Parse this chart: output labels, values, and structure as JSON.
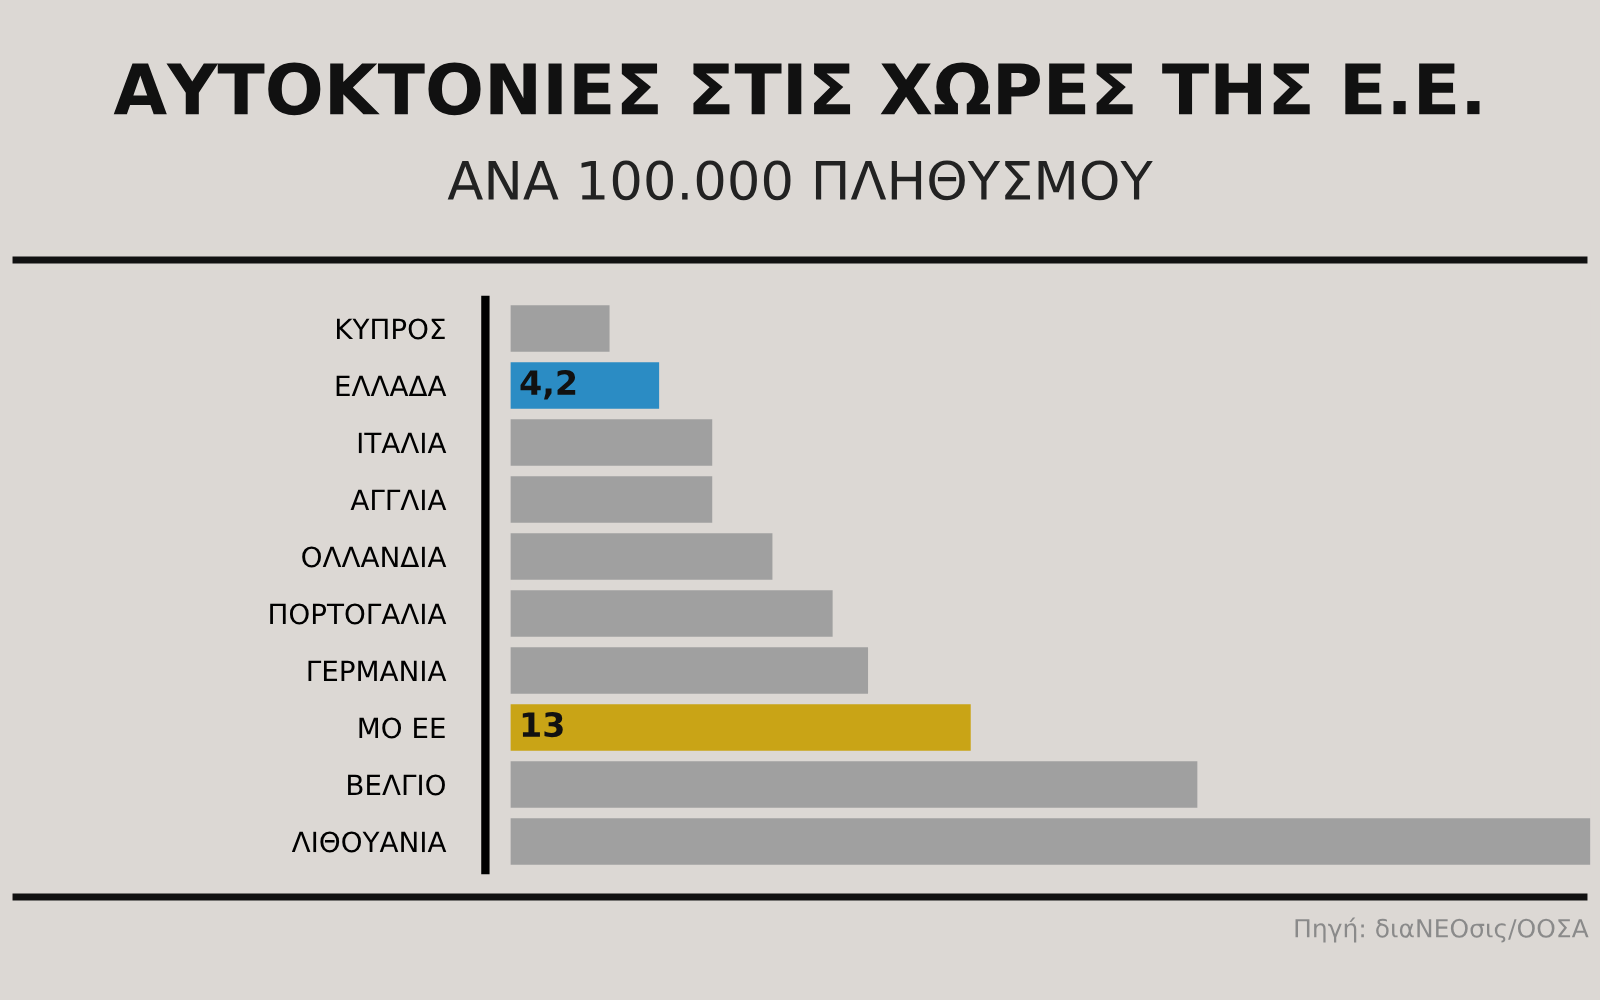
{
  "chart_data": {
    "type": "bar",
    "orientation": "horizontal",
    "title": "ΑΥΤΟΚΤΟΝΙΕΣ ΣΤΙΣ ΧΩΡΕΣ ΤΗΣ Ε.Ε.",
    "subtitle": "ΑΝΑ 100.000 ΠΛΗΘΥΣΜΟΥ",
    "categories": [
      "ΚΥΠΡΟΣ",
      "ΕΛΛΑΔΑ",
      "ΙΤΑΛΙΑ",
      "ΑΓΓΛΙΑ",
      "ΟΛΛΑΝΔΙΑ",
      "ΠΟΡΤΟΓΑΛΙΑ",
      "ΓΕΡΜΑΝΙΑ",
      "ΜΟ ΕΕ",
      "ΒΕΛΓΙΟ",
      "ΛΙΘΟΥΑΝΙΑ"
    ],
    "values": [
      2.8,
      4.2,
      5.7,
      5.7,
      7.4,
      9.1,
      10.1,
      13,
      19.4,
      30.5
    ],
    "colors": [
      "#a0a0a0",
      "#2b8cc4",
      "#a0a0a0",
      "#a0a0a0",
      "#a0a0a0",
      "#a0a0a0",
      "#a0a0a0",
      "#c9a416",
      "#a0a0a0",
      "#a0a0a0"
    ],
    "value_labels": [
      null,
      "4,2",
      null,
      null,
      null,
      null,
      null,
      "13",
      null,
      null
    ],
    "annotations": [
      "Πηγή: διαΝΕΟσις/ΟΟΣΑ"
    ],
    "grid": false,
    "legend": false
  }
}
